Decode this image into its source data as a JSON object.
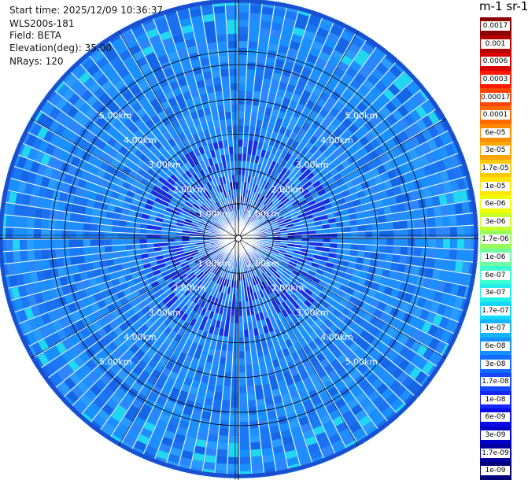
{
  "info": {
    "start_time": "Start time: 2025/12/09 10:36:37",
    "instrument": "WLS200s-181",
    "field": "Field: BETA",
    "elevation": "Elevation(deg): 35.00",
    "nrays": "NRays: 120"
  },
  "colorbar": {
    "title": "m-1 sr-1",
    "labels": [
      "0.0017",
      "0.001",
      "0.0006",
      "0.0003",
      "0.00017",
      "0.0001",
      "6e-05",
      "3e-05",
      "1.7e-05",
      "1e-05",
      "6e-06",
      "3e-06",
      "1.7e-06",
      "1e-06",
      "6e-07",
      "3e-07",
      "1.7e-07",
      "1e-07",
      "6e-08",
      "3e-08",
      "1.7e-08",
      "1e-08",
      "6e-09",
      "3e-09",
      "1.7e-09",
      "1e-09"
    ],
    "colors": [
      "#8b0000",
      "#b00000",
      "#d80000",
      "#ff1a00",
      "#ff4500",
      "#ff6a00",
      "#ff8c00",
      "#ffa500",
      "#ffc800",
      "#ffe600",
      "#f0ff00",
      "#c8ff28",
      "#96ff5a",
      "#6effa0",
      "#3cffd2",
      "#20f0e8",
      "#14d8ff",
      "#14b4ff",
      "#1490ff",
      "#146cff",
      "#1448ff",
      "#1428ff",
      "#0a0ae6",
      "#0000c8",
      "#0000a0",
      "#000078"
    ]
  },
  "chart_data": {
    "type": "heatmap",
    "projection": "polar PPI",
    "field": "BETA",
    "units": "m-1 sr-1",
    "elevation_deg": 35.0,
    "n_rays": 120,
    "range_rings_km": [
      1,
      2,
      3,
      4,
      5
    ],
    "ring_labels": [
      "1.00km",
      "2.00km",
      "3.00km",
      "4.00km",
      "5.00km"
    ],
    "max_range_km": 6.9,
    "dominant_value": "3e-08",
    "grid": true
  }
}
